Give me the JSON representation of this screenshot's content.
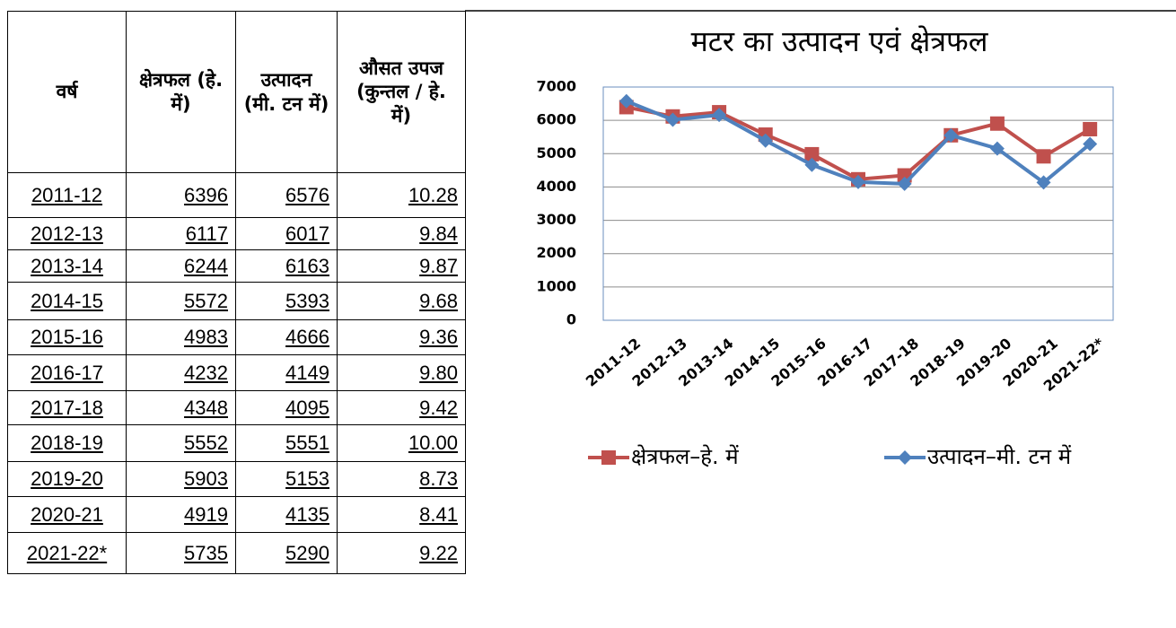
{
  "table": {
    "header": [
      "वर्ष",
      "क्षेत्रफल (हे. में)",
      "उत्पादन (मी. टन में)",
      "औसत उपज (कुन्तल / हे. में)"
    ],
    "rows": [
      [
        "2011-12",
        "6396",
        "6576",
        "10.28"
      ],
      [
        "2012-13",
        "6117",
        "6017",
        "9.84"
      ],
      [
        "2013-14",
        "6244",
        "6163",
        "9.87"
      ],
      [
        "2014-15",
        "5572",
        "5393",
        "9.68"
      ],
      [
        "2015-16",
        "4983",
        "4666",
        "9.36"
      ],
      [
        "2016-17",
        "4232",
        "4149",
        "9.80"
      ],
      [
        "2017-18",
        "4348",
        "4095",
        "9.42"
      ],
      [
        "2018-19",
        "5552",
        "5551",
        "10.00"
      ],
      [
        "2019-20",
        "5903",
        "5153",
        "8.73"
      ],
      [
        "2020-21",
        "4919",
        "4135",
        "8.41"
      ],
      [
        "2021-22*",
        "5735",
        "5290",
        "9.22"
      ]
    ]
  },
  "chart_data": {
    "type": "line",
    "title": "मटर का उत्पादन एवं क्षेत्रफल",
    "categories": [
      "2011-12",
      "2012-13",
      "2013-14",
      "2014-15",
      "2015-16",
      "2016-17",
      "2017-18",
      "2018-19",
      "2019-20",
      "2020-21",
      "2021-22*"
    ],
    "series": [
      {
        "name": "क्षेत्रफल–हे. में",
        "color": "#c0504d",
        "marker": "square",
        "values": [
          6396,
          6117,
          6244,
          5572,
          4983,
          4232,
          4348,
          5552,
          5903,
          4919,
          5735
        ]
      },
      {
        "name": "उत्पादन–मी. टन में",
        "color": "#4f81bd",
        "marker": "diamond",
        "values": [
          6576,
          6017,
          6163,
          5393,
          4666,
          4149,
          4095,
          5551,
          5153,
          4135,
          5290
        ]
      }
    ],
    "ylim": [
      0,
      7000
    ],
    "yticks": [
      0,
      1000,
      2000,
      3000,
      4000,
      5000,
      6000,
      7000
    ],
    "grid": true,
    "legend": "bottom"
  }
}
